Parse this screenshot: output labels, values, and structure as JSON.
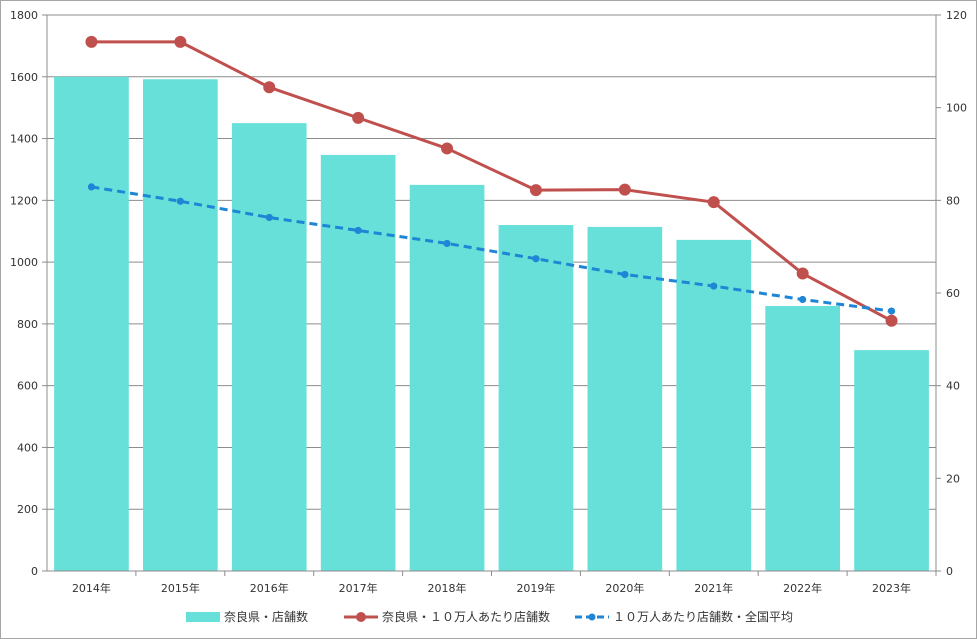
{
  "chart_data": {
    "type": "bar+line",
    "categories": [
      "2014年",
      "2015年",
      "2016年",
      "2017年",
      "2018年",
      "2019年",
      "2020年",
      "2021年",
      "2022年",
      "2023年"
    ],
    "series": [
      {
        "name": "奈良県・店舗数",
        "type": "bar",
        "axis": "left",
        "color": "#66e0d8",
        "values": [
          1600,
          1592,
          1450,
          1347,
          1250,
          1120,
          1114,
          1072,
          858,
          715
        ]
      },
      {
        "name": "奈良県・１０万人あたり店舗数",
        "type": "line",
        "axis": "right",
        "color": "#c0504d",
        "marker": "circle",
        "dash": "solid",
        "values": [
          114.2,
          114.2,
          104.4,
          97.8,
          91.2,
          82.2,
          82.3,
          79.6,
          64.2,
          54.0
        ]
      },
      {
        "name": "１０万人あたり店舗数・全国平均",
        "type": "line",
        "axis": "right",
        "color": "#1f86d6",
        "marker": "dot",
        "dash": "dashed",
        "values": [
          82.9,
          79.8,
          76.3,
          73.5,
          70.7,
          67.4,
          64.0,
          61.5,
          58.6,
          56.1
        ]
      }
    ],
    "y_left": {
      "min": 0,
      "max": 1800,
      "step": 200,
      "ticks": [
        "0",
        "200",
        "400",
        "600",
        "800",
        "1000",
        "1200",
        "1400",
        "1600",
        "1800"
      ]
    },
    "y_right": {
      "min": 0,
      "max": 120,
      "step": 20,
      "ticks": [
        "0",
        "20",
        "40",
        "60",
        "80",
        "100",
        "120"
      ]
    },
    "grid": true,
    "legend_position": "bottom",
    "title": ""
  }
}
